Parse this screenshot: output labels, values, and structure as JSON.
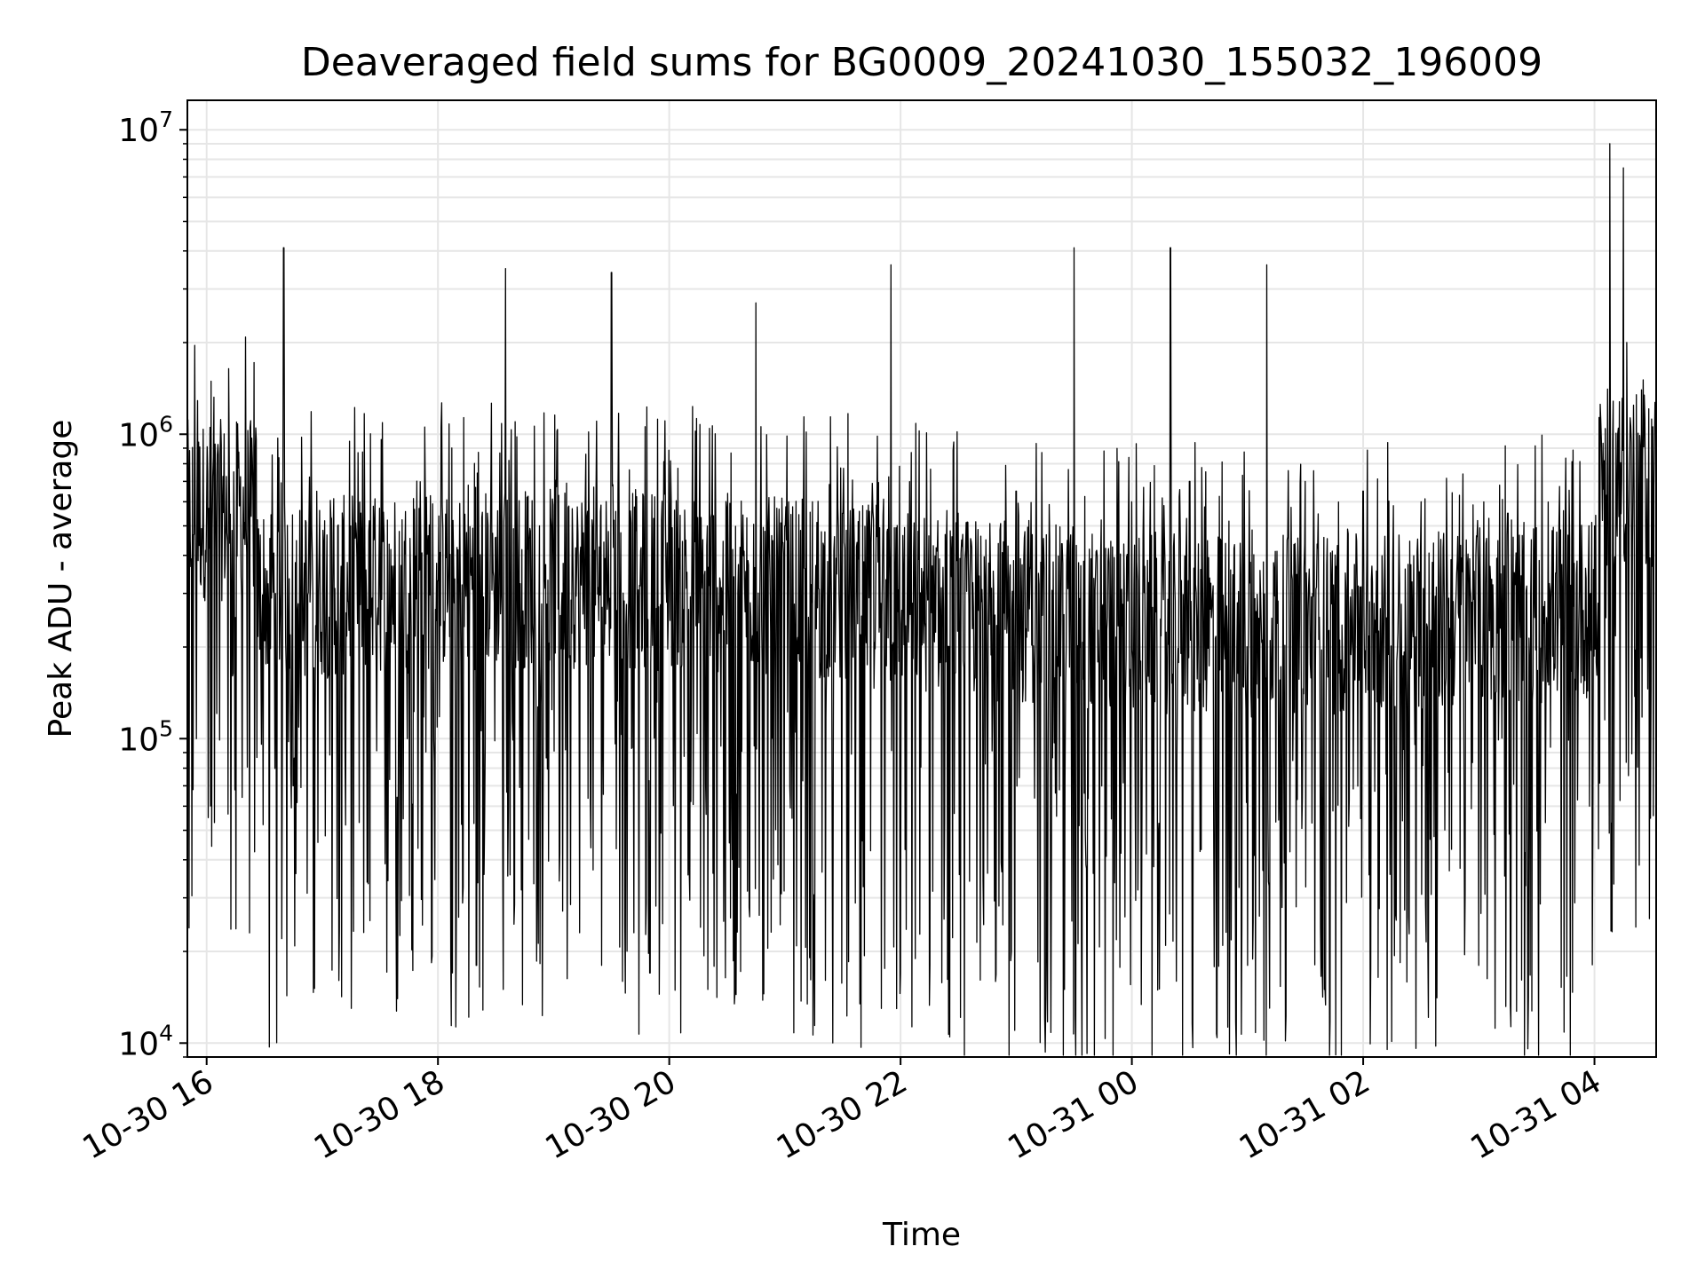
{
  "chart_data": {
    "type": "line",
    "title": "Deaveraged field sums for BG0009_20241030_155032_196009",
    "xlabel": "Time",
    "ylabel": "Peak ADU - average",
    "y_scale": "log",
    "ylim": [
      9000,
      12500000
    ],
    "xlim": [
      "2024-10-30 15:50",
      "2024-10-31 04:32"
    ],
    "x_ticks": [
      {
        "t": "2024-10-30 16:00",
        "label": "10-30 16"
      },
      {
        "t": "2024-10-30 18:00",
        "label": "10-30 18"
      },
      {
        "t": "2024-10-30 20:00",
        "label": "10-30 20"
      },
      {
        "t": "2024-10-30 22:00",
        "label": "10-30 22"
      },
      {
        "t": "2024-10-31 00:00",
        "label": "10-31 00"
      },
      {
        "t": "2024-10-31 02:00",
        "label": "10-31 02"
      },
      {
        "t": "2024-10-31 04:00",
        "label": "10-31 04"
      }
    ],
    "y_ticks": [
      {
        "value": 10000,
        "base": "10",
        "exp": "4"
      },
      {
        "value": 100000,
        "base": "10",
        "exp": "5"
      },
      {
        "value": 1000000,
        "base": "10",
        "exp": "6"
      },
      {
        "value": 10000000,
        "base": "10",
        "exp": "7"
      }
    ],
    "grid": true,
    "grid_minor": true,
    "line_color": "#000000",
    "grid_color": "#e6e6e6",
    "series": [
      {
        "points": [
          [
            "2024-10-30 15:50",
            650000
          ],
          [
            "2024-10-30 16:05",
            420000
          ],
          [
            "2024-10-30 16:15",
            250000
          ],
          [
            "2024-10-30 16:30",
            210000
          ],
          [
            "2024-10-30 16:40",
            4100000
          ],
          [
            "2024-10-30 16:45",
            70000
          ],
          [
            "2024-10-30 16:50",
            210000
          ],
          [
            "2024-10-30 17:00",
            240000
          ],
          [
            "2024-10-30 17:15",
            13000
          ],
          [
            "2024-10-30 17:30",
            250000
          ],
          [
            "2024-10-30 17:45",
            300000
          ],
          [
            "2024-10-30 18:00",
            330000
          ],
          [
            "2024-10-30 18:20",
            18000
          ],
          [
            "2024-10-30 18:35",
            3500000
          ],
          [
            "2024-10-30 19:00",
            380000
          ],
          [
            "2024-10-30 19:25",
            18000
          ],
          [
            "2024-10-30 19:30",
            3400000
          ],
          [
            "2024-10-30 19:50",
            17000
          ],
          [
            "2024-10-30 20:00",
            400000
          ],
          [
            "2024-10-30 20:20",
            15000
          ],
          [
            "2024-10-30 20:45",
            2700000
          ],
          [
            "2024-10-30 21:00",
            500000
          ],
          [
            "2024-10-30 21:30",
            550000
          ],
          [
            "2024-10-30 21:55",
            3600000
          ],
          [
            "2024-10-30 22:00",
            17000
          ],
          [
            "2024-10-30 22:30",
            550000
          ],
          [
            "2024-10-30 23:00",
            650000
          ],
          [
            "2024-10-30 23:25",
            15000
          ],
          [
            "2024-10-30 23:30",
            4100000
          ],
          [
            "2024-10-31 00:00",
            600000
          ],
          [
            "2024-10-31 00:20",
            4100000
          ],
          [
            "2024-10-31 00:30",
            700000
          ],
          [
            "2024-10-31 01:00",
            18000
          ],
          [
            "2024-10-31 01:10",
            3600000
          ],
          [
            "2024-10-31 01:30",
            700000
          ],
          [
            "2024-10-31 01:40",
            15000
          ],
          [
            "2024-10-31 02:00",
            650000
          ],
          [
            "2024-10-31 02:30",
            600000
          ],
          [
            "2024-10-31 03:00",
            18000
          ],
          [
            "2024-10-31 03:15",
            550000
          ],
          [
            "2024-10-31 03:40",
            350000
          ],
          [
            "2024-10-31 04:00",
            500000
          ],
          [
            "2024-10-31 04:08",
            9000000
          ],
          [
            "2024-10-31 04:15",
            7500000
          ],
          [
            "2024-10-31 04:25",
            800000
          ],
          [
            "2024-10-31 04:32",
            900000
          ]
        ]
      }
    ]
  }
}
